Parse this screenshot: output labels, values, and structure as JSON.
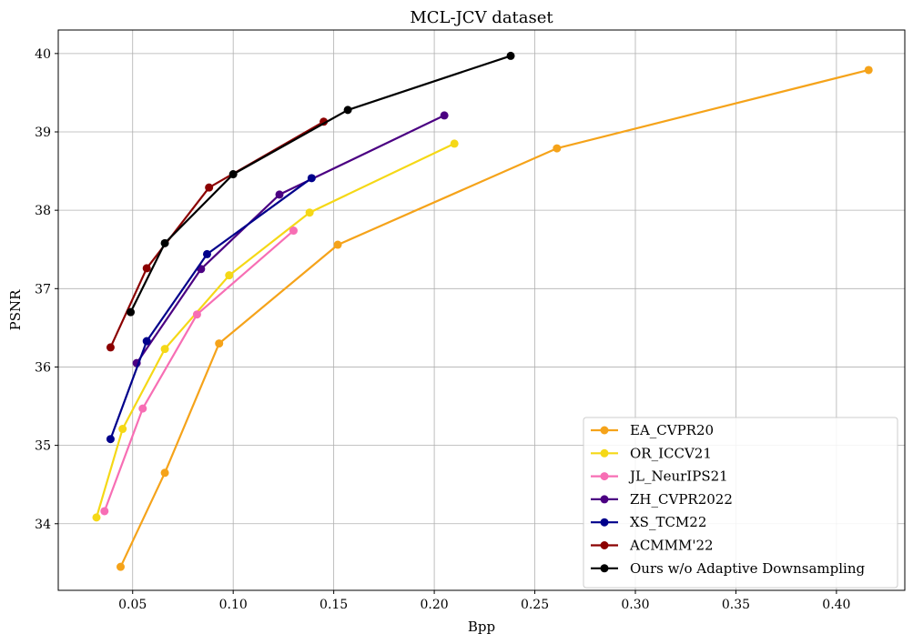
{
  "chart_data": {
    "type": "line",
    "title": "MCL-JCV dataset",
    "xlabel": "Bpp",
    "ylabel": "PSNR",
    "xlim": [
      0.013,
      0.434
    ],
    "ylim": [
      33.15,
      40.3
    ],
    "xticks": [
      0.05,
      0.1,
      0.15,
      0.2,
      0.25,
      0.3,
      0.35,
      0.4
    ],
    "xtick_labels": [
      "0.05",
      "0.10",
      "0.15",
      "0.20",
      "0.25",
      "0.30",
      "0.35",
      "0.40"
    ],
    "yticks": [
      34,
      35,
      36,
      37,
      38,
      39,
      40
    ],
    "ytick_labels": [
      "34",
      "35",
      "36",
      "37",
      "38",
      "39",
      "40"
    ],
    "grid": true,
    "legend_position": "bottom-right",
    "series": [
      {
        "name": "EA_CVPR20",
        "color": "#f5a31a",
        "x": [
          0.044,
          0.066,
          0.093,
          0.152,
          0.261,
          0.416
        ],
        "y": [
          33.45,
          34.65,
          36.3,
          37.56,
          38.79,
          39.79
        ]
      },
      {
        "name": "OR_ICCV21",
        "color": "#f5d816",
        "x": [
          0.032,
          0.045,
          0.066,
          0.098,
          0.138,
          0.21
        ],
        "y": [
          34.08,
          35.21,
          36.23,
          37.17,
          37.97,
          38.85
        ]
      },
      {
        "name": "JL_NeurIPS21",
        "color": "#f76eb4",
        "x": [
          0.036,
          0.055,
          0.082,
          0.13
        ],
        "y": [
          34.16,
          35.47,
          36.67,
          37.74
        ]
      },
      {
        "name": "ZH_CVPR2022",
        "color": "#4b0082",
        "x": [
          0.052,
          0.084,
          0.123,
          0.205
        ],
        "y": [
          36.05,
          37.25,
          38.2,
          39.21
        ]
      },
      {
        "name": "XS_TCM22",
        "color": "#00008b",
        "x": [
          0.039,
          0.057,
          0.087,
          0.139
        ],
        "y": [
          35.08,
          36.33,
          37.44,
          38.41
        ]
      },
      {
        "name": "ACMMM'22",
        "color": "#8b0000",
        "x": [
          0.039,
          0.057,
          0.088,
          0.145
        ],
        "y": [
          36.25,
          37.26,
          38.29,
          39.13
        ]
      },
      {
        "name": "Ours w/o Adaptive Downsampling",
        "color": "#000000",
        "x": [
          0.049,
          0.066,
          0.1,
          0.157,
          0.238
        ],
        "y": [
          36.7,
          37.58,
          38.46,
          39.28,
          39.97
        ]
      }
    ]
  }
}
